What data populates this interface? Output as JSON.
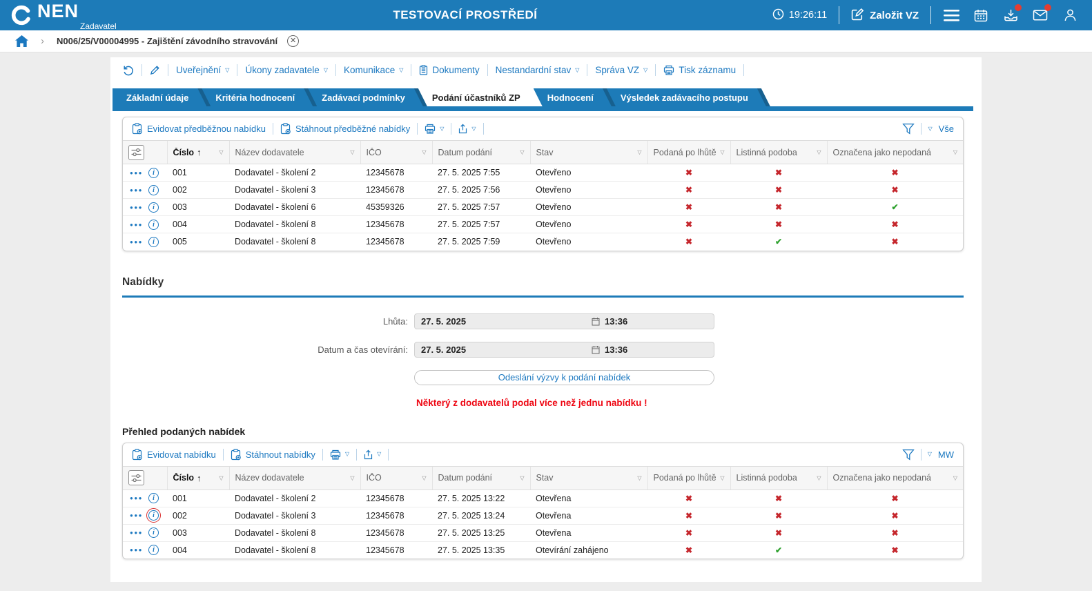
{
  "header": {
    "logo": "NEN",
    "logo_sub": "Zadavatel",
    "env_title": "TESTOVACÍ PROSTŘEDÍ",
    "time": "19:26:11",
    "create_vz_label": "Založit VZ",
    "right_icons": [
      {
        "name": "menu-icon",
        "badge": false
      },
      {
        "name": "calendar-icon",
        "badge": false
      },
      {
        "name": "download-icon",
        "badge": true
      },
      {
        "name": "mail-icon",
        "badge": true
      },
      {
        "name": "user-icon",
        "badge": false
      }
    ],
    "badge_color": "#e23d32",
    "accent_color": "#1d7bb8"
  },
  "breadcrumb": {
    "item": "N006/25/V00004995 - Zajištění závodního stravování",
    "close_glyph": "✕"
  },
  "action_bar": {
    "icon_buttons": [
      {
        "name": "undo-icon"
      },
      {
        "name": "pencil-icon"
      }
    ],
    "items": [
      {
        "label": "Uveřejnění",
        "caret": true
      },
      {
        "label": "Úkony zadavatele",
        "caret": true
      },
      {
        "label": "Komunikace",
        "caret": true
      },
      {
        "label": "Dokumenty",
        "icon": "document"
      },
      {
        "label": "Nestandardní stav",
        "caret": true
      },
      {
        "label": "Správa VZ",
        "caret": true
      },
      {
        "label": "Tisk záznamu",
        "icon": "printer"
      }
    ]
  },
  "tabs": [
    {
      "label": "Základní údaje",
      "active": false
    },
    {
      "label": "Kritéria hodnocení",
      "active": false
    },
    {
      "label": "Zadávací podmínky",
      "active": false
    },
    {
      "label": "Podání účastníků ZP",
      "active": true
    },
    {
      "label": "Hodnocení",
      "active": false
    },
    {
      "label": "Výsledek zadávacího postupu",
      "active": false
    }
  ],
  "grid_columns": [
    {
      "key": "cislo",
      "label": "Číslo",
      "sorted": "asc"
    },
    {
      "key": "nazev",
      "label": "Název dodavatele"
    },
    {
      "key": "ico",
      "label": "IČO"
    },
    {
      "key": "datum",
      "label": "Datum podání"
    },
    {
      "key": "stav",
      "label": "Stav"
    },
    {
      "key": "po_lhute",
      "label": "Podaná po lhůtě",
      "bool": true
    },
    {
      "key": "listinna",
      "label": "Listinná podoba",
      "bool": true
    },
    {
      "key": "nepodana",
      "label": "Označena jako nepodaná",
      "bool": true
    }
  ],
  "tables": [
    {
      "actions": [
        "Evidovat předběžnou nabídku",
        "Stáhnout předběžné nabídky"
      ],
      "filter_value": "Vše",
      "rows": [
        {
          "cislo": "001",
          "nazev": "Dodavatel - školení 2",
          "ico": "12345678",
          "datum": "27. 5. 2025 7:55",
          "stav": "Otevřeno",
          "po_lhute": false,
          "listinna": false,
          "nepodana": false
        },
        {
          "cislo": "002",
          "nazev": "Dodavatel - školení 3",
          "ico": "12345678",
          "datum": "27. 5. 2025 7:56",
          "stav": "Otevřeno",
          "po_lhute": false,
          "listinna": false,
          "nepodana": false
        },
        {
          "cislo": "003",
          "nazev": "Dodavatel - školení 6",
          "ico": "45359326",
          "datum": "27. 5. 2025 7:57",
          "stav": "Otevřeno",
          "po_lhute": false,
          "listinna": false,
          "nepodana": true
        },
        {
          "cislo": "004",
          "nazev": "Dodavatel - školení 8",
          "ico": "12345678",
          "datum": "27. 5. 2025 7:57",
          "stav": "Otevřeno",
          "po_lhute": false,
          "listinna": false,
          "nepodana": false
        },
        {
          "cislo": "005",
          "nazev": "Dodavatel - školení 8",
          "ico": "12345678",
          "datum": "27. 5. 2025 7:59",
          "stav": "Otevřeno",
          "po_lhute": false,
          "listinna": true,
          "nepodana": false
        }
      ]
    },
    {
      "actions": [
        "Evidovat nabídku",
        "Stáhnout nabídky"
      ],
      "filter_value": "MW",
      "rows": [
        {
          "cislo": "001",
          "nazev": "Dodavatel - školení 2",
          "ico": "12345678",
          "datum": "27. 5. 2025 13:22",
          "stav": "Otevřena",
          "po_lhute": false,
          "listinna": false,
          "nepodana": false
        },
        {
          "cislo": "002",
          "nazev": "Dodavatel - školení 3",
          "ico": "12345678",
          "datum": "27. 5. 2025 13:24",
          "stav": "Otevřena",
          "po_lhute": false,
          "listinna": false,
          "nepodana": false,
          "info_highlighted": true
        },
        {
          "cislo": "003",
          "nazev": "Dodavatel - školení 8",
          "ico": "12345678",
          "datum": "27. 5. 2025 13:25",
          "stav": "Otevřena",
          "po_lhute": false,
          "listinna": false,
          "nepodana": false
        },
        {
          "cislo": "004",
          "nazev": "Dodavatel - školení 8",
          "ico": "12345678",
          "datum": "27. 5. 2025 13:35",
          "stav": "Otevírání zahájeno",
          "po_lhute": false,
          "listinna": true,
          "nepodana": false
        }
      ]
    }
  ],
  "nabidky": {
    "title": "Nabídky",
    "fields": [
      {
        "label": "Lhůta:",
        "date": "27. 5. 2025",
        "time": "13:36"
      },
      {
        "label": "Datum a čas otevírání:",
        "date": "27. 5. 2025",
        "time": "13:36"
      }
    ],
    "button_label": "Odeslání výzvy k podání nabídek",
    "warning": "Některý z dodavatelů podal více než jednu nabídku !"
  },
  "podane": {
    "title": "Přehled podaných nabídek"
  },
  "colors": {
    "header_blue": "#1d7bb8",
    "link_blue": "#1b78c0",
    "tab_separator_blue": "#17608f",
    "cross_red": "#c5262c",
    "check_green": "#2ea12e",
    "warning_red": "#ee0511"
  }
}
